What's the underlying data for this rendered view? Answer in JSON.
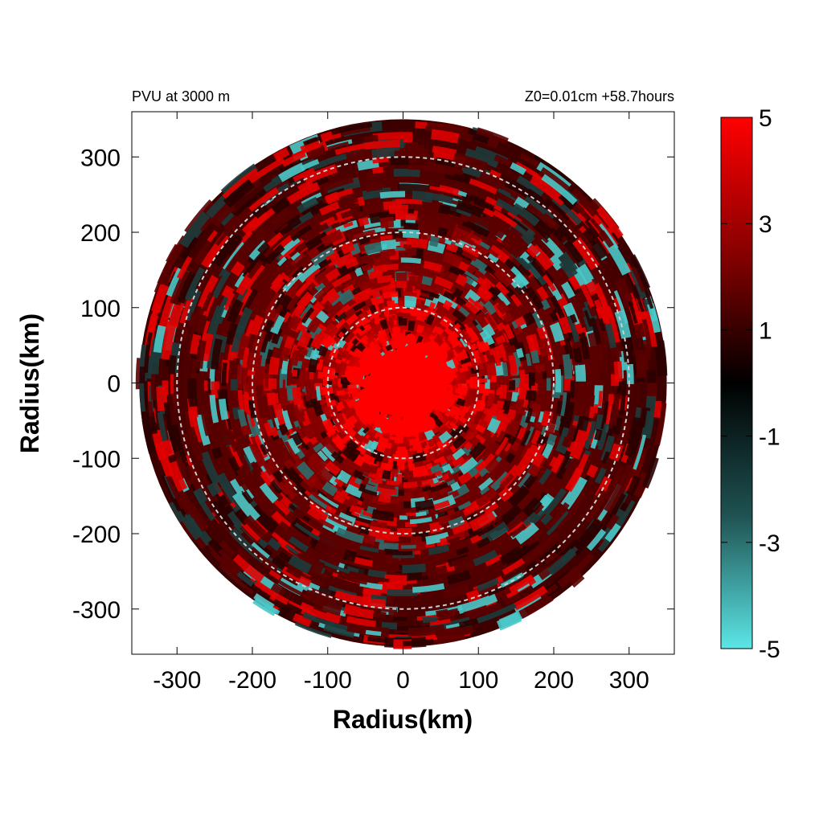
{
  "chart_data": {
    "type": "heatmap",
    "title_left": "PVU at  3000 m",
    "title_right": "Z0=0.01cm  +58.7hours",
    "xlabel": "Radius(km)",
    "ylabel": "Radius(km)",
    "xlim": [
      -360,
      360
    ],
    "ylim": [
      -360,
      360
    ],
    "x_ticks": [
      -300,
      -200,
      -100,
      0,
      100,
      200,
      300
    ],
    "y_ticks": [
      300,
      200,
      100,
      0,
      -100,
      -200,
      -300
    ],
    "range_rings_km": [
      100,
      200,
      300
    ],
    "data_radius_km": 350,
    "colorbar": {
      "min": -5,
      "max": 5,
      "ticks": [
        5,
        3,
        1,
        -1,
        -3,
        -5
      ],
      "colors": [
        "#5ce6e6",
        "#1a3a3a",
        "#000000",
        "#7a0000",
        "#ff0000"
      ]
    },
    "field_description": "Potential vorticity (PVU) polar field; strong positive core (>5) within ~50 km of center, mixed red/cyan banded rings outward"
  }
}
